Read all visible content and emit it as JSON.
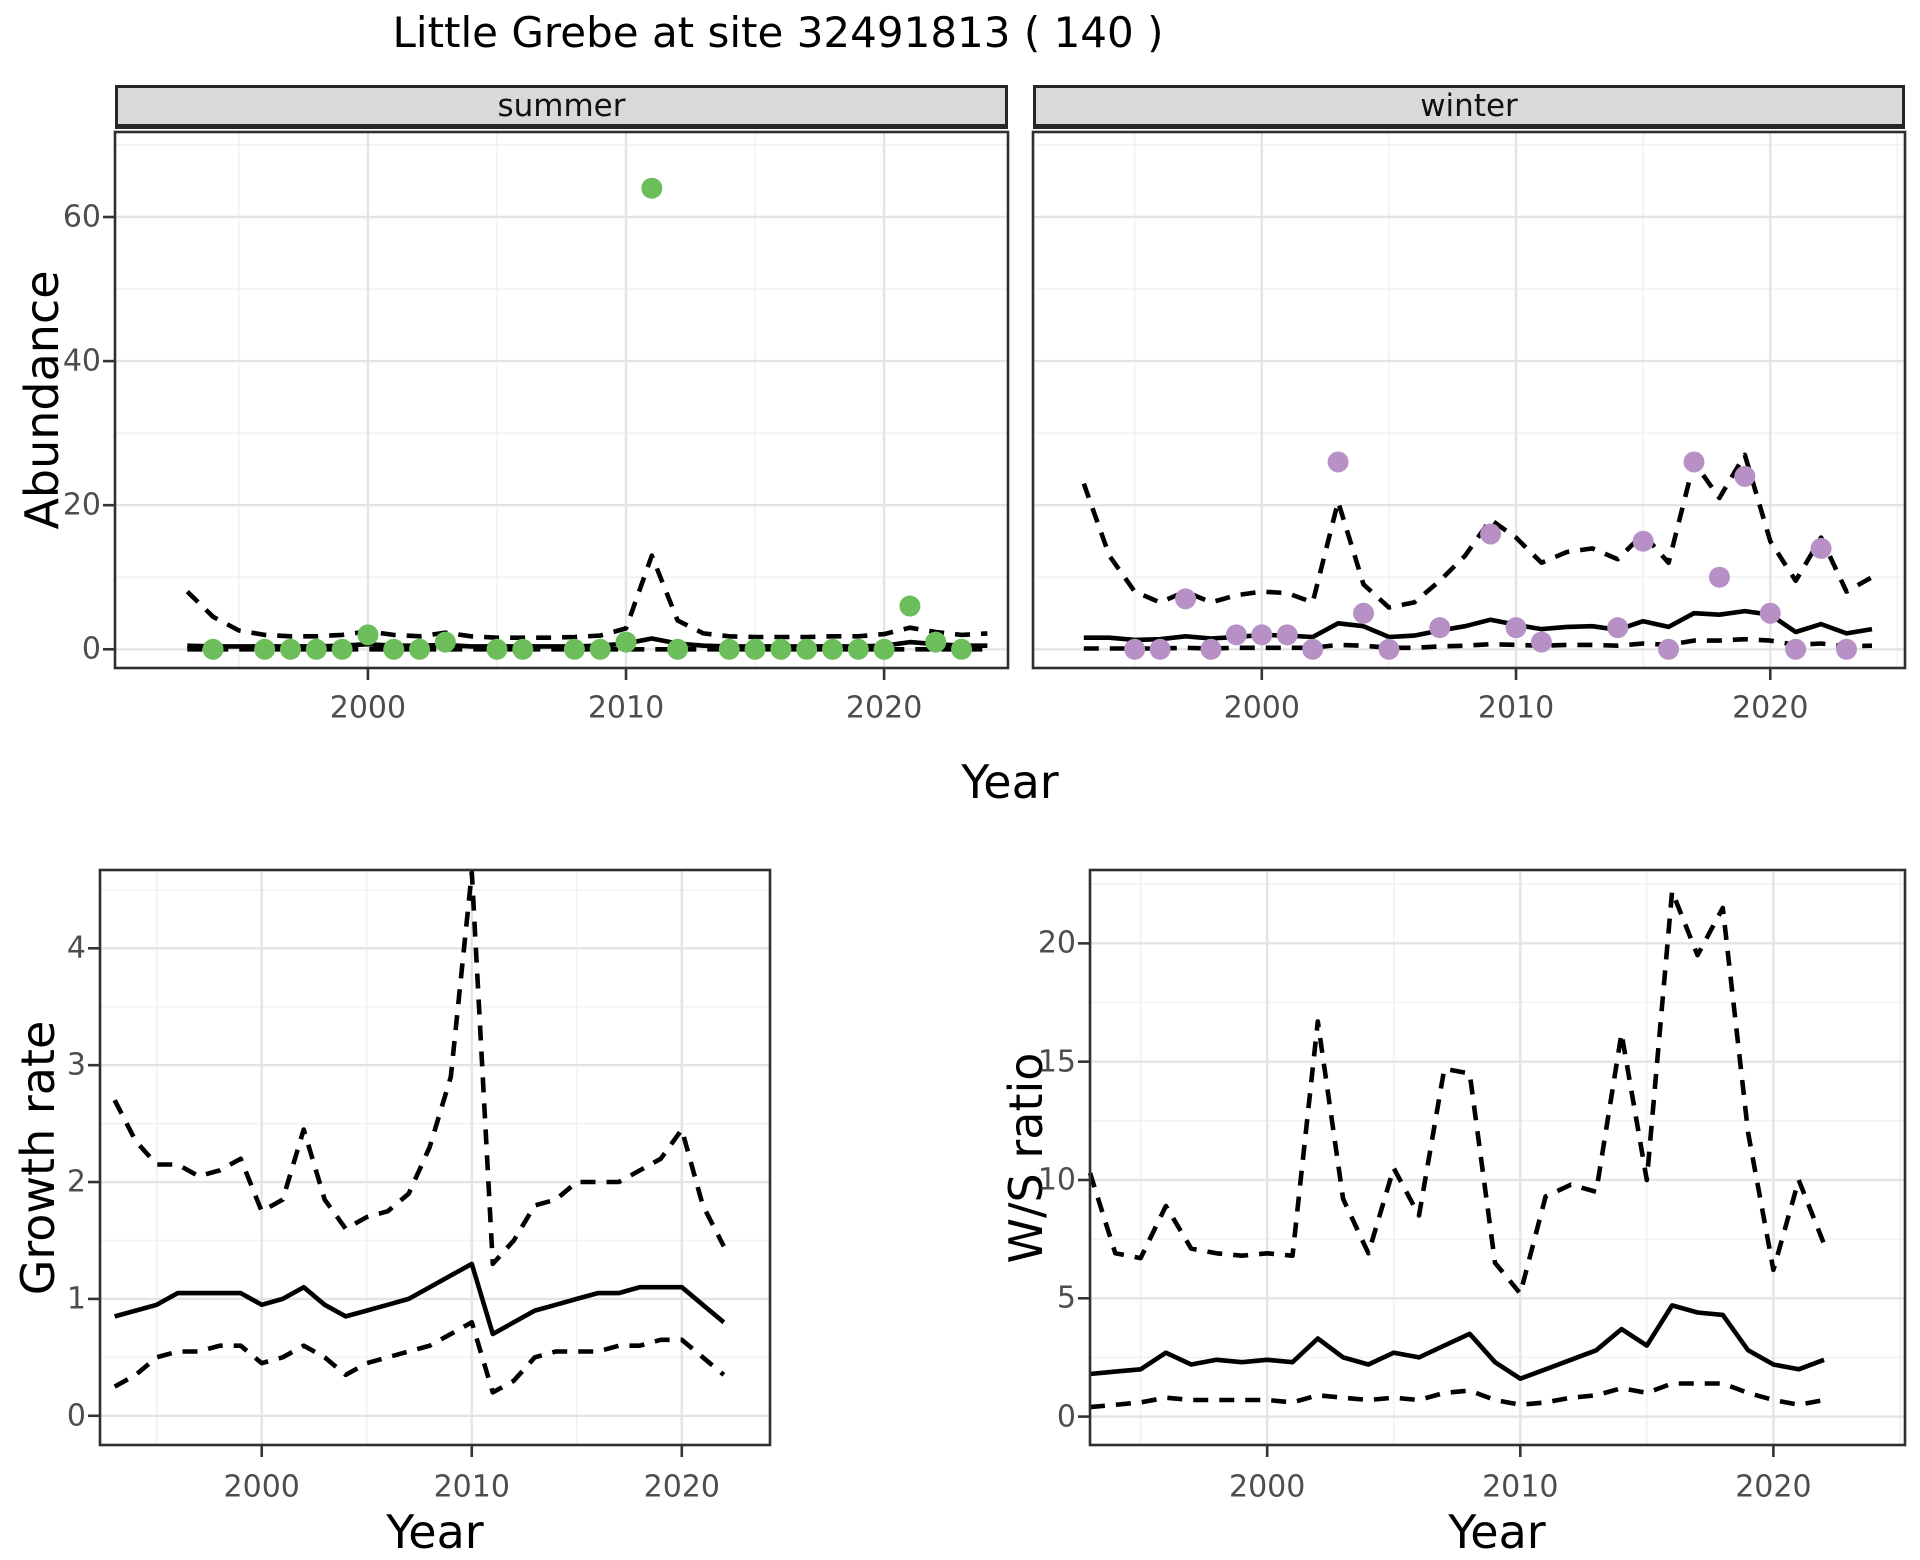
{
  "title": "Little Grebe at site 32491813 ( 140 )",
  "colors": {
    "summer_point": "#6cbe5b",
    "winter_point": "#b791c6",
    "mean_line": "#000000",
    "ci_line": "#000000",
    "grid_major": "#e4e4e4",
    "grid_minor": "#f2f2f2",
    "panel_border": "#2f2f2f",
    "strip_bg": "#d9d9d9",
    "axis_text": "#4d4d4d",
    "tick_mark": "#333333",
    "background": "#ffffff"
  },
  "axes": {
    "top_ylabel": "Abundance",
    "top_xlabel": "Year",
    "growth_ylabel": "Growth rate",
    "growth_xlabel": "Year",
    "ws_ylabel": "W/S ratio",
    "ws_xlabel": "Year"
  },
  "chart_data": [
    {
      "id": "summer",
      "type": "scatter",
      "facet_label": "summer",
      "xlabel": "Year",
      "ylabel": "Abundance",
      "xticks": [
        2000,
        2010,
        2020
      ],
      "yticks": [
        0,
        20,
        40,
        60
      ],
      "xlim": [
        1990.2,
        2024.8
      ],
      "ylim": [
        -2.6,
        71.8
      ],
      "point_color": "#6cbe5b",
      "points": [
        [
          1994,
          0
        ],
        [
          1996,
          0
        ],
        [
          1997,
          0
        ],
        [
          1998,
          0
        ],
        [
          1999,
          0
        ],
        [
          2000,
          2
        ],
        [
          2001,
          0
        ],
        [
          2002,
          0
        ],
        [
          2003,
          1
        ],
        [
          2005,
          0
        ],
        [
          2006,
          0
        ],
        [
          2008,
          0
        ],
        [
          2009,
          0
        ],
        [
          2010,
          1
        ],
        [
          2011,
          64
        ],
        [
          2012,
          0
        ],
        [
          2014,
          0
        ],
        [
          2015,
          0
        ],
        [
          2016,
          0
        ],
        [
          2017,
          0
        ],
        [
          2018,
          0
        ],
        [
          2019,
          0
        ],
        [
          2020,
          0
        ],
        [
          2021,
          6
        ],
        [
          2022,
          1
        ],
        [
          2023,
          0
        ]
      ],
      "line_years": [
        1993,
        1994,
        1995,
        1996,
        1997,
        1998,
        1999,
        2000,
        2001,
        2002,
        2003,
        2004,
        2005,
        2006,
        2007,
        2008,
        2009,
        2010,
        2011,
        2012,
        2013,
        2014,
        2015,
        2016,
        2017,
        2018,
        2019,
        2020,
        2021,
        2022,
        2023,
        2024
      ],
      "mean": [
        0.5,
        0.4,
        0.4,
        0.4,
        0.4,
        0.4,
        0.5,
        0.7,
        0.5,
        0.5,
        0.6,
        0.4,
        0.4,
        0.4,
        0.4,
        0.4,
        0.5,
        0.8,
        1.5,
        0.8,
        0.5,
        0.4,
        0.4,
        0.4,
        0.4,
        0.4,
        0.4,
        0.5,
        1.0,
        0.7,
        0.5,
        0.5
      ],
      "ci_upper": [
        8.0,
        4.5,
        2.6,
        2.0,
        1.8,
        1.8,
        2.0,
        2.5,
        2.0,
        1.8,
        2.3,
        1.8,
        1.6,
        1.6,
        1.6,
        1.7,
        1.9,
        2.9,
        13.0,
        4.0,
        2.2,
        1.8,
        1.7,
        1.7,
        1.7,
        1.8,
        1.8,
        2.1,
        3.0,
        2.4,
        2.0,
        2.2
      ],
      "ci_lower": [
        0,
        0,
        0,
        0,
        0,
        0,
        0,
        0,
        0,
        0,
        0,
        0,
        0,
        0,
        0,
        0,
        0,
        0,
        0,
        0,
        0,
        0,
        0,
        0,
        0,
        0,
        0,
        0,
        0,
        0,
        0,
        0
      ]
    },
    {
      "id": "winter",
      "type": "scatter",
      "facet_label": "winter",
      "xlabel": "Year",
      "ylabel": "Abundance",
      "xticks": [
        2000,
        2010,
        2020
      ],
      "yticks": [
        0,
        20,
        40,
        60
      ],
      "xlim": [
        1991.0,
        2025.3
      ],
      "ylim": [
        -2.6,
        71.8
      ],
      "point_color": "#b791c6",
      "points": [
        [
          1995,
          0
        ],
        [
          1996,
          0
        ],
        [
          1997,
          7
        ],
        [
          1998,
          0
        ],
        [
          1999,
          2
        ],
        [
          2000,
          2
        ],
        [
          2001,
          2
        ],
        [
          2002,
          0
        ],
        [
          2003,
          26
        ],
        [
          2004,
          5
        ],
        [
          2005,
          0
        ],
        [
          2007,
          3
        ],
        [
          2009,
          16
        ],
        [
          2010,
          3
        ],
        [
          2011,
          1
        ],
        [
          2014,
          3
        ],
        [
          2015,
          15
        ],
        [
          2016,
          0
        ],
        [
          2017,
          26
        ],
        [
          2018,
          10
        ],
        [
          2019,
          24
        ],
        [
          2020,
          5
        ],
        [
          2021,
          0
        ],
        [
          2022,
          14
        ],
        [
          2023,
          0
        ]
      ],
      "line_years": [
        1993,
        1994,
        1995,
        1996,
        1997,
        1998,
        1999,
        2000,
        2001,
        2002,
        2003,
        2004,
        2005,
        2006,
        2007,
        2008,
        2009,
        2010,
        2011,
        2012,
        2013,
        2014,
        2015,
        2016,
        2017,
        2018,
        2019,
        2020,
        2021,
        2022,
        2023,
        2024
      ],
      "mean": [
        1.6,
        1.6,
        1.3,
        1.4,
        1.8,
        1.5,
        1.7,
        2.0,
        1.9,
        1.7,
        3.6,
        3.2,
        1.7,
        1.9,
        2.6,
        3.2,
        4.1,
        3.4,
        2.8,
        3.1,
        3.2,
        2.7,
        3.9,
        3.1,
        5.0,
        4.8,
        5.3,
        4.8,
        2.4,
        3.5,
        2.2,
        2.8
      ],
      "ci_upper": [
        23.0,
        13.0,
        8.0,
        6.5,
        8.0,
        6.5,
        7.5,
        8.0,
        7.8,
        6.5,
        20.5,
        9.0,
        5.8,
        6.5,
        9.5,
        13.0,
        18.0,
        15.5,
        12.0,
        13.5,
        14.0,
        12.5,
        16.0,
        12.0,
        26.0,
        21.0,
        27.0,
        15.0,
        9.5,
        15.5,
        8.0,
        10.0
      ],
      "ci_lower": [
        0.1,
        0.1,
        0.1,
        0.1,
        0.2,
        0.1,
        0.2,
        0.2,
        0.2,
        0.2,
        0.6,
        0.5,
        0.2,
        0.2,
        0.4,
        0.5,
        0.7,
        0.6,
        0.5,
        0.6,
        0.6,
        0.5,
        0.8,
        0.6,
        1.2,
        1.2,
        1.4,
        1.2,
        0.6,
        0.8,
        0.4,
        0.5
      ]
    },
    {
      "id": "growth_rate",
      "type": "line",
      "facet_label": "",
      "xlabel": "Year",
      "ylabel": "Growth rate",
      "xticks": [
        2000,
        2010,
        2020
      ],
      "yticks": [
        0,
        1,
        2,
        3,
        4
      ],
      "xlim": [
        1992.3,
        2024.2
      ],
      "ylim": [
        -0.25,
        4.67
      ],
      "point_color": "#000000",
      "points": [],
      "line_years": [
        1993,
        1994,
        1995,
        1996,
        1997,
        1998,
        1999,
        2000,
        2001,
        2002,
        2003,
        2004,
        2005,
        2006,
        2007,
        2008,
        2009,
        2010,
        2011,
        2012,
        2013,
        2014,
        2015,
        2016,
        2017,
        2018,
        2019,
        2020,
        2021,
        2022
      ],
      "mean": [
        0.85,
        0.9,
        0.95,
        1.05,
        1.05,
        1.05,
        1.05,
        0.95,
        1.0,
        1.1,
        0.95,
        0.85,
        0.9,
        0.95,
        1.0,
        1.1,
        1.2,
        1.3,
        0.7,
        0.8,
        0.9,
        0.95,
        1.0,
        1.05,
        1.05,
        1.1,
        1.1,
        1.1,
        0.95,
        0.8
      ],
      "ci_upper": [
        2.7,
        2.35,
        2.15,
        2.15,
        2.05,
        2.1,
        2.2,
        1.75,
        1.85,
        2.45,
        1.85,
        1.6,
        1.7,
        1.75,
        1.9,
        2.3,
        2.9,
        4.65,
        1.3,
        1.5,
        1.8,
        1.85,
        2.0,
        2.0,
        2.0,
        2.1,
        2.2,
        2.45,
        1.8,
        1.45
      ],
      "ci_lower": [
        0.25,
        0.35,
        0.5,
        0.55,
        0.55,
        0.6,
        0.6,
        0.45,
        0.5,
        0.6,
        0.5,
        0.35,
        0.45,
        0.5,
        0.55,
        0.6,
        0.7,
        0.8,
        0.2,
        0.3,
        0.5,
        0.55,
        0.55,
        0.55,
        0.6,
        0.6,
        0.65,
        0.65,
        0.5,
        0.35
      ]
    },
    {
      "id": "ws_ratio",
      "type": "line",
      "facet_label": "",
      "xlabel": "Year",
      "ylabel": "W/S ratio",
      "xticks": [
        2000,
        2010,
        2020
      ],
      "yticks": [
        0,
        5,
        10,
        15,
        20
      ],
      "xlim": [
        1993.0,
        2025.2
      ],
      "ylim": [
        -1.2,
        23.1
      ],
      "point_color": "#000000",
      "points": [],
      "line_years": [
        1993,
        1994,
        1995,
        1996,
        1997,
        1998,
        1999,
        2000,
        2001,
        2002,
        2003,
        2004,
        2005,
        2006,
        2007,
        2008,
        2009,
        2010,
        2011,
        2012,
        2013,
        2014,
        2015,
        2016,
        2017,
        2018,
        2019,
        2020,
        2021,
        2022
      ],
      "mean": [
        1.8,
        1.9,
        2.0,
        2.7,
        2.2,
        2.4,
        2.3,
        2.4,
        2.3,
        3.3,
        2.5,
        2.2,
        2.7,
        2.5,
        3.0,
        3.5,
        2.3,
        1.6,
        2.0,
        2.4,
        2.8,
        3.7,
        3.0,
        4.7,
        4.4,
        4.3,
        2.8,
        2.2,
        2.0,
        2.4
      ],
      "ci_upper": [
        10.3,
        6.9,
        6.7,
        8.9,
        7.1,
        6.9,
        6.8,
        6.9,
        6.8,
        16.7,
        9.2,
        6.9,
        10.5,
        8.5,
        14.7,
        14.5,
        6.5,
        5.2,
        9.3,
        9.8,
        9.5,
        16.2,
        10.0,
        22.2,
        19.5,
        21.5,
        12.0,
        6.2,
        10.0,
        7.3
      ],
      "ci_lower": [
        0.4,
        0.5,
        0.6,
        0.8,
        0.7,
        0.7,
        0.7,
        0.7,
        0.6,
        0.9,
        0.8,
        0.7,
        0.8,
        0.7,
        1.0,
        1.1,
        0.7,
        0.5,
        0.6,
        0.8,
        0.9,
        1.2,
        1.0,
        1.4,
        1.4,
        1.4,
        1.0,
        0.7,
        0.5,
        0.7
      ]
    }
  ]
}
